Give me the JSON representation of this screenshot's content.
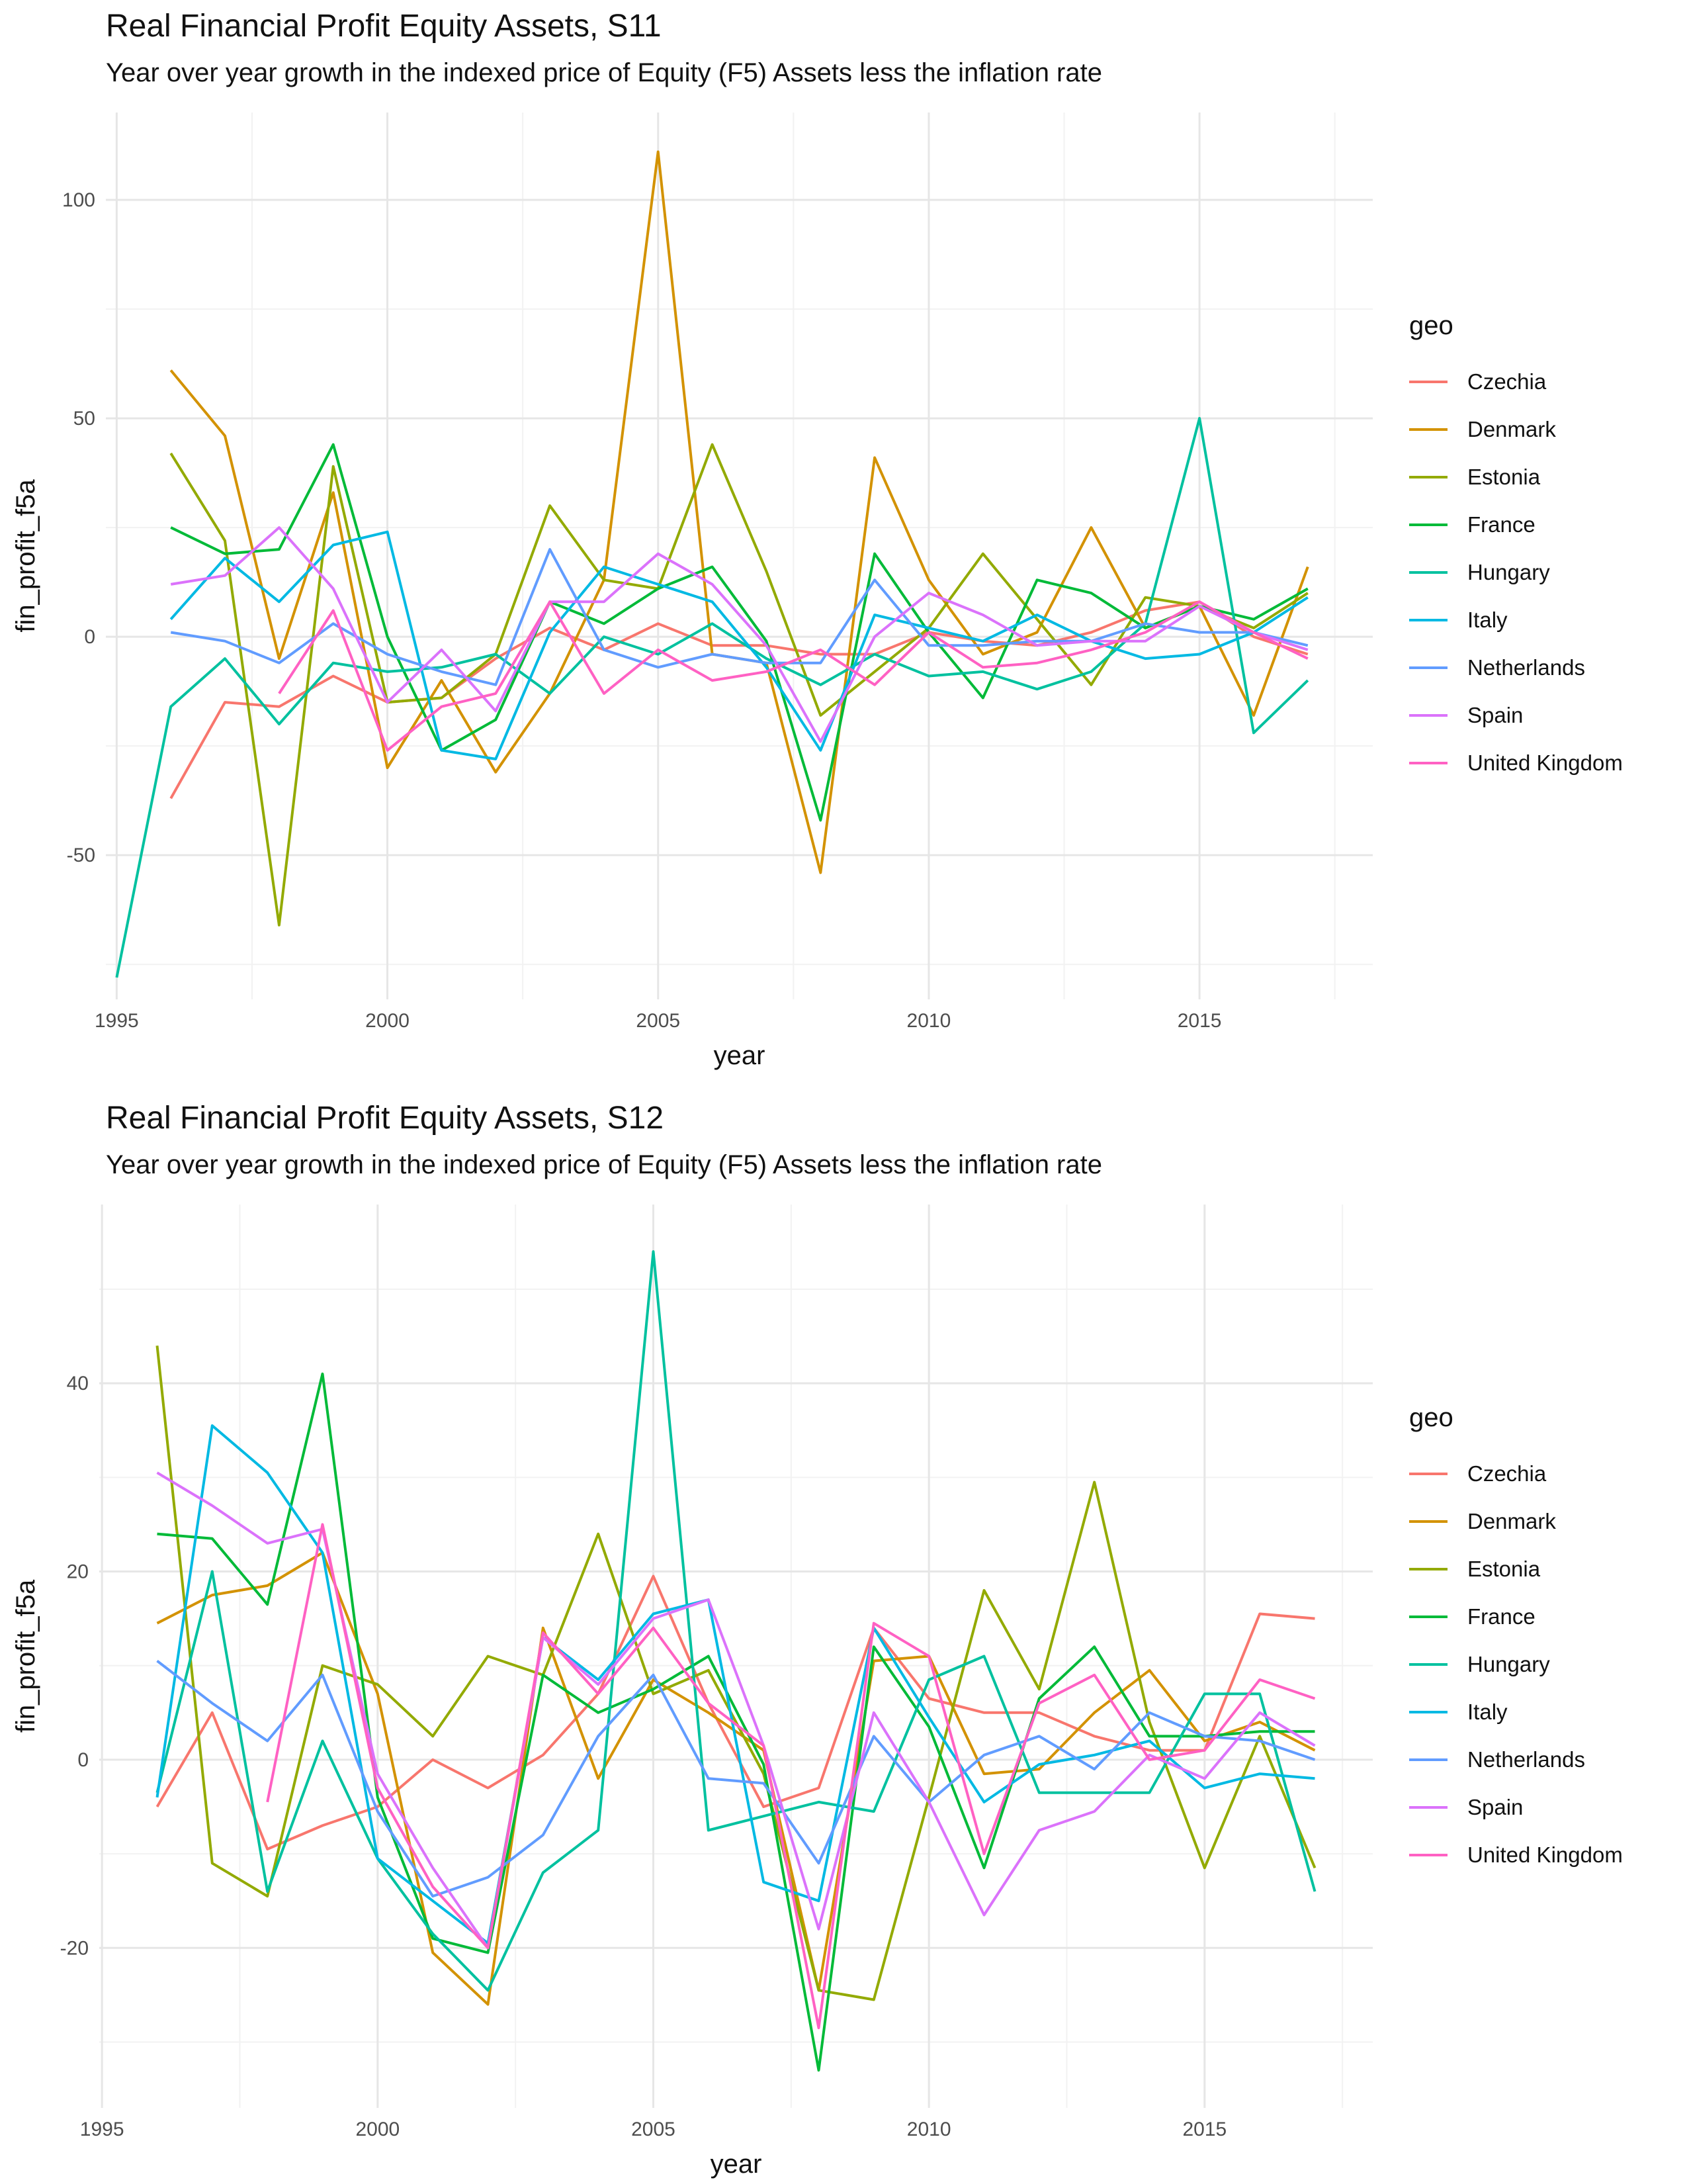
{
  "chart_data": [
    {
      "type": "line",
      "title": "Real Financial Profit Equity Assets, S11",
      "subtitle": "Year over year growth in the indexed price of Equity (F5) Assets less the inflation rate",
      "xlabel": "year",
      "ylabel": "fin_profit_f5a",
      "legend_title": "geo",
      "legend_position": "right",
      "grid": true,
      "xlim": [
        1994.8,
        2018.2
      ],
      "ylim": [
        -83,
        120
      ],
      "x_ticks": [
        1995,
        2000,
        2005,
        2010,
        2015
      ],
      "x_tick_labels": [
        "1995",
        "2000",
        "2005",
        "2010",
        "2015"
      ],
      "y_ticks": [
        -50,
        0,
        50,
        100
      ],
      "y_tick_labels": [
        "-50",
        "0",
        "50",
        "100"
      ],
      "x": [
        1995,
        1996,
        1997,
        1998,
        1999,
        2000,
        2001,
        2002,
        2003,
        2004,
        2005,
        2006,
        2007,
        2008,
        2009,
        2010,
        2011,
        2012,
        2013,
        2014,
        2015,
        2016,
        2017
      ],
      "series": [
        {
          "name": "Czechia",
          "color": "#F8766D",
          "values": [
            null,
            -37,
            -15,
            -16,
            -9,
            -15,
            -14,
            -5,
            2,
            -3,
            3,
            -2,
            -2,
            -4,
            -4,
            1,
            -1,
            -2,
            1,
            6,
            8,
            0,
            -4
          ]
        },
        {
          "name": "Denmark",
          "color": "#D39200",
          "values": [
            null,
            61,
            46,
            -5,
            33,
            -30,
            -10,
            -31,
            -13,
            13,
            111,
            -4,
            -6,
            -54,
            41,
            13,
            -4,
            1,
            25,
            2,
            7,
            -18,
            16
          ]
        },
        {
          "name": "Estonia",
          "color": "#93AA00",
          "values": [
            null,
            42,
            22,
            -66,
            39,
            -15,
            -14,
            -4,
            30,
            13,
            11,
            44,
            15,
            -18,
            -8,
            2,
            19,
            4,
            -11,
            9,
            7,
            2,
            10
          ]
        },
        {
          "name": "France",
          "color": "#00BA38",
          "values": [
            null,
            25,
            19,
            20,
            44,
            0,
            -26,
            -19,
            8,
            3,
            11,
            16,
            -1,
            -42,
            19,
            1,
            -14,
            13,
            10,
            2,
            7,
            4,
            11
          ]
        },
        {
          "name": "Hungary",
          "color": "#00C19F",
          "values": [
            -78,
            -16,
            -5,
            -20,
            -6,
            -8,
            -7,
            -4,
            -13,
            0,
            -4,
            3,
            -5,
            -11,
            -4,
            -9,
            -8,
            -12,
            -8,
            3,
            50,
            -22,
            -10
          ]
        },
        {
          "name": "Italy",
          "color": "#00B9E3",
          "values": [
            null,
            4,
            18,
            8,
            21,
            24,
            -26,
            -28,
            1,
            16,
            12,
            8,
            -7,
            -26,
            5,
            2,
            -1,
            5,
            -1,
            -5,
            -4,
            1,
            9
          ]
        },
        {
          "name": "Netherlands",
          "color": "#619CFF",
          "values": [
            null,
            1,
            -1,
            -6,
            3,
            -4,
            -8,
            -11,
            20,
            -3,
            -7,
            -4,
            -6,
            -6,
            13,
            -2,
            -2,
            -1,
            -1,
            3,
            1,
            1,
            -2
          ]
        },
        {
          "name": "Spain",
          "color": "#DB72FB",
          "values": [
            null,
            12,
            14,
            25,
            11,
            -15,
            -3,
            -17,
            8,
            8,
            19,
            12,
            -2,
            -24,
            0,
            10,
            5,
            -2,
            -1,
            -1,
            7,
            1,
            -3
          ]
        },
        {
          "name": "United Kingdom",
          "color": "#FF61C3",
          "values": [
            null,
            null,
            null,
            -13,
            6,
            -26,
            -16,
            -13,
            8,
            -13,
            -3,
            -10,
            -8,
            -3,
            -11,
            1,
            -7,
            -6,
            -3,
            1,
            8,
            1,
            -5
          ]
        }
      ]
    },
    {
      "type": "line",
      "title": "Real Financial Profit Equity Assets, S12",
      "subtitle": "Year over year growth in the indexed price of Equity (F5) Assets less the inflation rate",
      "xlabel": "year",
      "ylabel": "fin_profit_f5a",
      "legend_title": "geo",
      "legend_position": "right",
      "grid": true,
      "xlim": [
        1994.95,
        2018.05
      ],
      "ylim": [
        -37,
        59
      ],
      "x_ticks": [
        1995,
        2000,
        2005,
        2010,
        2015
      ],
      "x_tick_labels": [
        "1995",
        "2000",
        "2005",
        "2010",
        "2015"
      ],
      "y_ticks": [
        -20,
        0,
        20,
        40
      ],
      "y_tick_labels": [
        "-20",
        "0",
        "20",
        "40"
      ],
      "x": [
        1996,
        1997,
        1998,
        1999,
        2000,
        2001,
        2002,
        2003,
        2004,
        2005,
        2006,
        2007,
        2008,
        2009,
        2010,
        2011,
        2012,
        2013,
        2014,
        2015,
        2016,
        2017
      ],
      "series": [
        {
          "name": "Czechia",
          "color": "#F8766D",
          "values": [
            -5,
            5,
            -9.5,
            -7,
            -5,
            0,
            -3,
            0.5,
            7,
            19.5,
            6,
            -5,
            -3,
            14,
            6.5,
            5,
            5,
            2.5,
            1,
            1,
            15.5,
            15
          ]
        },
        {
          "name": "Denmark",
          "color": "#D39200",
          "values": [
            14.5,
            17.5,
            18.5,
            22,
            7,
            -20.5,
            -26,
            14,
            -2,
            8.5,
            5,
            1,
            -24.5,
            10.5,
            11,
            -1.5,
            -1,
            5,
            9.5,
            2,
            4,
            1
          ]
        },
        {
          "name": "Estonia",
          "color": "#93AA00",
          "values": [
            44,
            -11,
            -14.5,
            10,
            8,
            2.5,
            11,
            9,
            24,
            7,
            9.5,
            -1.5,
            -24.5,
            -25.5,
            -4,
            18,
            7.5,
            29.5,
            4,
            -11.5,
            2.5,
            -11.5
          ]
        },
        {
          "name": "France",
          "color": "#00BA38",
          "values": [
            24,
            23.5,
            16.5,
            41,
            -4,
            -19,
            -20.5,
            9,
            5,
            7.5,
            11,
            -0.5,
            -33,
            12,
            3.5,
            -11.5,
            6.5,
            12,
            2.5,
            2.5,
            3,
            3
          ]
        },
        {
          "name": "Hungary",
          "color": "#00C19F",
          "values": [
            -3.5,
            20,
            -14,
            2,
            -10.5,
            -18.5,
            -24.5,
            -12,
            -7.5,
            54,
            -7.5,
            -6,
            -4.5,
            -5.5,
            8.5,
            11,
            -3.5,
            -3.5,
            -3.5,
            7,
            7,
            -14
          ]
        },
        {
          "name": "Italy",
          "color": "#00B9E3",
          "values": [
            -4,
            35.5,
            30.5,
            22,
            -10.5,
            -15,
            -19.5,
            13,
            8.5,
            15.5,
            17,
            -13,
            -15,
            14,
            4.5,
            -4.5,
            -0.5,
            0.5,
            2,
            -3,
            -1.5,
            -2
          ]
        },
        {
          "name": "Netherlands",
          "color": "#619CFF",
          "values": [
            10.5,
            6,
            2,
            9,
            -5.5,
            -14.5,
            -12.5,
            -8,
            2.5,
            9,
            -2,
            -2.5,
            -11,
            2.5,
            -4.5,
            0.5,
            2.5,
            -1,
            5,
            2.5,
            2,
            0
          ]
        },
        {
          "name": "Spain",
          "color": "#DB72FB",
          "values": [
            30.5,
            27,
            23,
            24.5,
            -1.5,
            -11.5,
            -20,
            13,
            8,
            15,
            17,
            1.5,
            -18,
            5,
            -4.5,
            -16.5,
            -7.5,
            -5.5,
            0.5,
            -2,
            5,
            1.5
          ]
        },
        {
          "name": "United Kingdom",
          "color": "#FF61C3",
          "values": [
            null,
            null,
            -4.5,
            25,
            -3,
            -13.5,
            -20,
            13.5,
            7,
            14,
            6,
            1.5,
            -28.5,
            14.5,
            11,
            -10,
            6,
            9,
            0,
            1,
            8.5,
            6.5
          ]
        }
      ]
    }
  ]
}
